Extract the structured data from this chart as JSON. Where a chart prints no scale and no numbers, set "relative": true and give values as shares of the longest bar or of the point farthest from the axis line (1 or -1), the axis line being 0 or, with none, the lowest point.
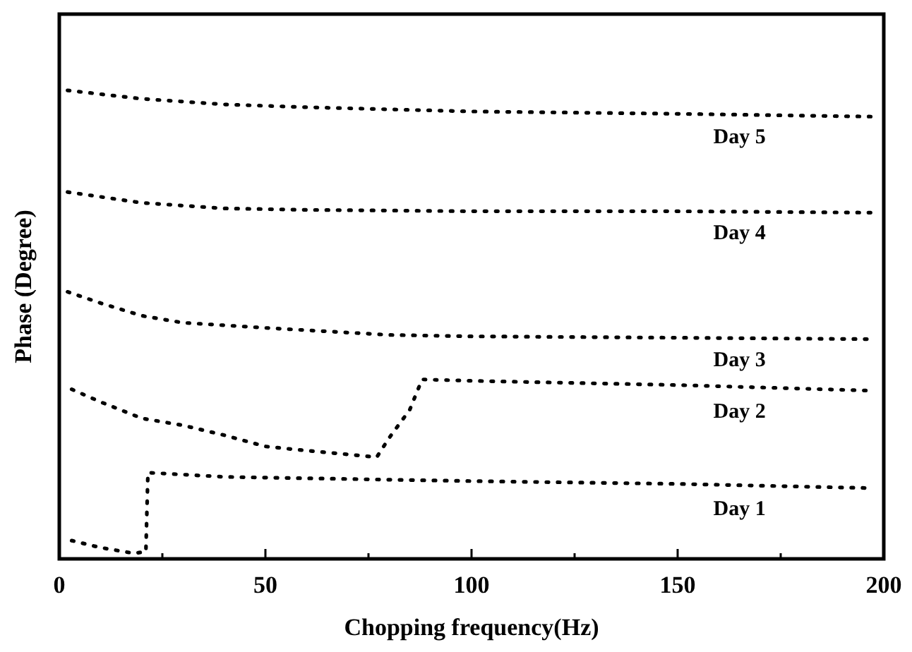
{
  "chart_data": {
    "type": "line",
    "xlabel": "Chopping frequency(Hz)",
    "ylabel": "Phase (Degree)",
    "relative": true,
    "line_style": "dotted",
    "marker": "none",
    "grid": false,
    "xlim": [
      0,
      200
    ],
    "xticks": [
      0,
      {
        "value": 25,
        "label": null
      },
      50,
      {
        "value": 75,
        "label": null
      },
      100,
      {
        "value": 125,
        "label": null
      },
      150,
      {
        "value": 175,
        "label": null
      },
      200
    ],
    "series": [
      {
        "name": "Day 5",
        "color": "#000000",
        "x": [
          2,
          20,
          40,
          60,
          100,
          150,
          197
        ],
        "values": [
          1.0,
          0.982,
          0.97,
          0.964,
          0.955,
          0.95,
          0.944
        ]
      },
      {
        "name": "Day 4",
        "color": "#000000",
        "x": [
          2,
          20,
          40,
          60,
          100,
          150,
          197
        ],
        "values": [
          0.783,
          0.76,
          0.748,
          0.745,
          0.742,
          0.742,
          0.739
        ]
      },
      {
        "name": "Day 3",
        "color": "#000000",
        "x": [
          2,
          10,
          20,
          30,
          50,
          80,
          100,
          150,
          197
        ],
        "values": [
          0.57,
          0.546,
          0.519,
          0.504,
          0.493,
          0.478,
          0.475,
          0.472,
          0.469
        ]
      },
      {
        "name": "Day 2",
        "color": "#000000",
        "x": [
          3,
          10,
          20,
          30,
          40,
          50,
          60,
          70,
          77,
          80,
          85,
          88,
          100,
          150,
          197
        ],
        "values": [
          0.362,
          0.335,
          0.3,
          0.285,
          0.264,
          0.24,
          0.231,
          0.223,
          0.217,
          0.258,
          0.318,
          0.383,
          0.38,
          0.371,
          0.359
        ]
      },
      {
        "name": "Day 1",
        "color": "#000000",
        "x": [
          3,
          10,
          18,
          21,
          21.5,
          40,
          100,
          150,
          197
        ],
        "values": [
          0.039,
          0.024,
          0.012,
          0.015,
          0.184,
          0.175,
          0.166,
          0.16,
          0.151
        ]
      }
    ]
  }
}
